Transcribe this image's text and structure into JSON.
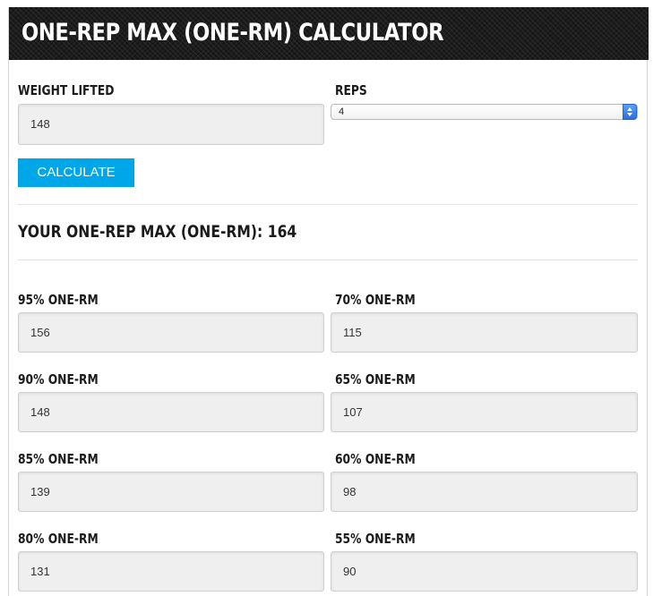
{
  "header": {
    "title": "ONE-REP MAX (ONE-RM) CALCULATOR"
  },
  "inputs": {
    "weight_label": "WEIGHT LIFTED",
    "weight_value": "148",
    "reps_label": "REPS",
    "reps_selected": "4"
  },
  "calculate_label": "CALCULATE",
  "result": {
    "label": "YOUR ONE-REP MAX (ONE-RM):",
    "value": "164"
  },
  "percentages": {
    "left": [
      {
        "label": "95% ONE-RM",
        "value": "156"
      },
      {
        "label": "90% ONE-RM",
        "value": "148"
      },
      {
        "label": "85% ONE-RM",
        "value": "139"
      },
      {
        "label": "80% ONE-RM",
        "value": "131"
      }
    ],
    "right": [
      {
        "label": "70% ONE-RM",
        "value": "115"
      },
      {
        "label": "65% ONE-RM",
        "value": "107"
      },
      {
        "label": "60% ONE-RM",
        "value": "98"
      },
      {
        "label": "55% ONE-RM",
        "value": "90"
      }
    ]
  },
  "colors": {
    "button": "#00a7e8",
    "header_bg": "#1c1c1c",
    "field_bg": "#efefef"
  }
}
